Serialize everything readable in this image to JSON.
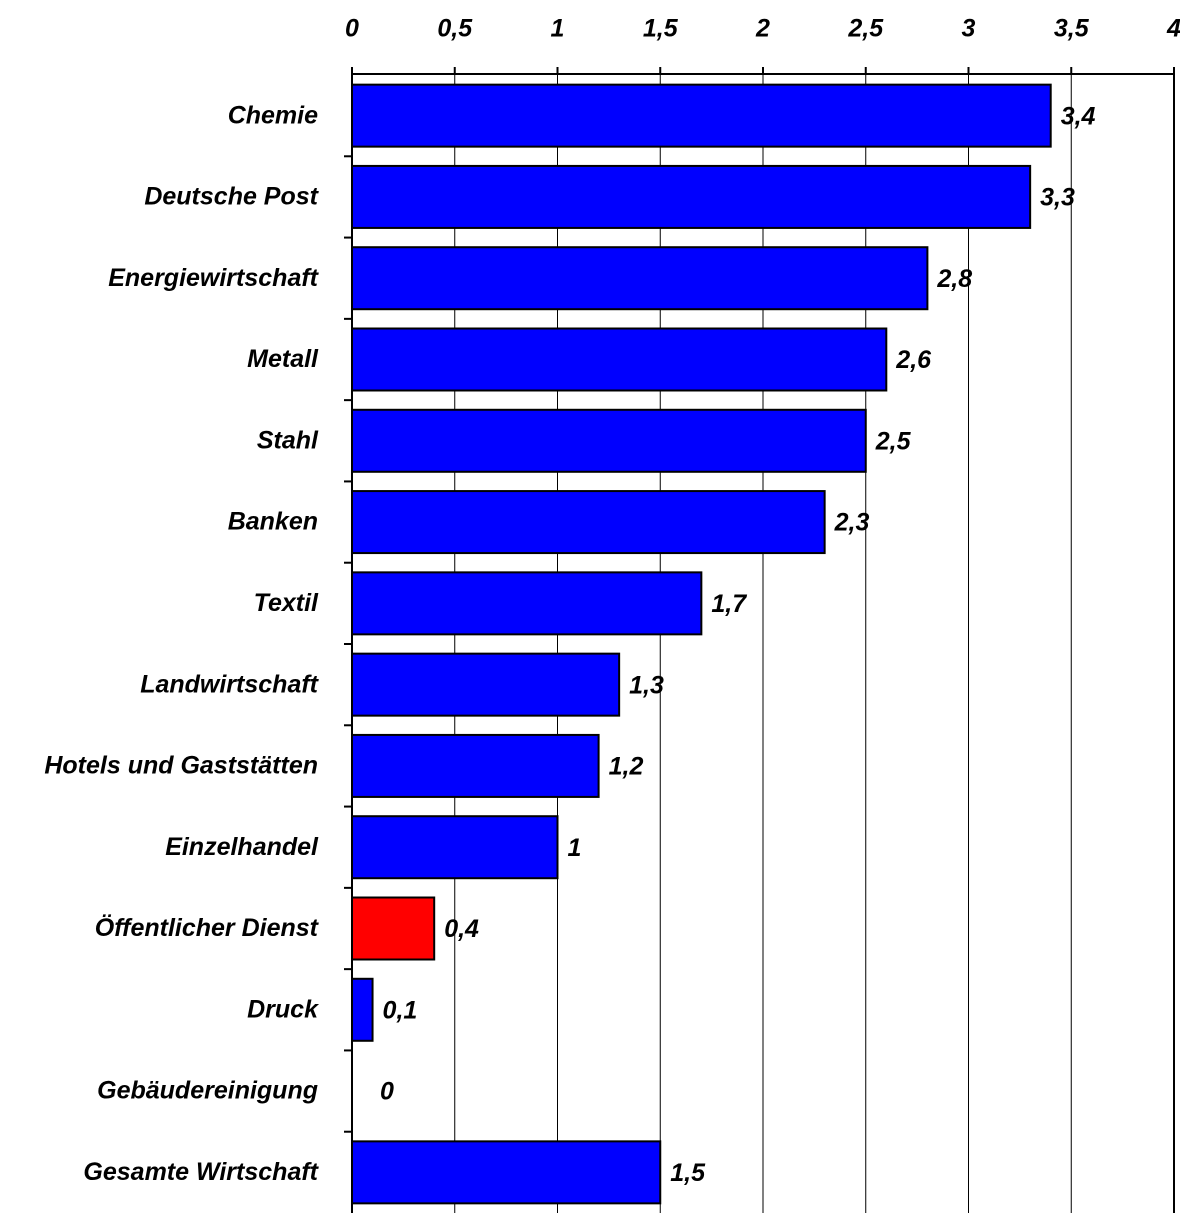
{
  "chart_data": {
    "type": "hbar",
    "categories": [
      "Chemie",
      "Deutsche Post",
      "Energiewirtschaft",
      "Metall",
      "Stahl",
      "Banken",
      "Textil",
      "Landwirtschaft",
      "Hotels und Gaststätten",
      "Einzelhandel",
      "Öffentlicher Dienst",
      "Druck",
      "Gebäudereinigung",
      "Gesamte Wirtschaft"
    ],
    "values": [
      3.4,
      3.3,
      2.8,
      2.6,
      2.5,
      2.3,
      1.7,
      1.3,
      1.2,
      1,
      0.4,
      0.1,
      0,
      1.5
    ],
    "value_labels": [
      "3,4",
      "3,3",
      "2,8",
      "2,6",
      "2,5",
      "2,3",
      "1,7",
      "1,3",
      "1,2",
      "1",
      "0,4",
      "0,1",
      "0",
      "1,5"
    ],
    "colors": [
      "#0000ff",
      "#0000ff",
      "#0000ff",
      "#0000ff",
      "#0000ff",
      "#0000ff",
      "#0000ff",
      "#0000ff",
      "#0000ff",
      "#0000ff",
      "#ff0000",
      "#0000ff",
      "#0000ff",
      "#0000ff"
    ],
    "xlim": [
      0,
      4
    ],
    "xticks": [
      0,
      {
        "value": 0.5,
        "label": "0,5"
      },
      1,
      {
        "value": 1.5,
        "label": "1,5"
      },
      2,
      {
        "value": 2.5,
        "label": "2,5"
      },
      3,
      {
        "value": 3.5,
        "label": "3,5"
      },
      4
    ],
    "grid": true
  }
}
